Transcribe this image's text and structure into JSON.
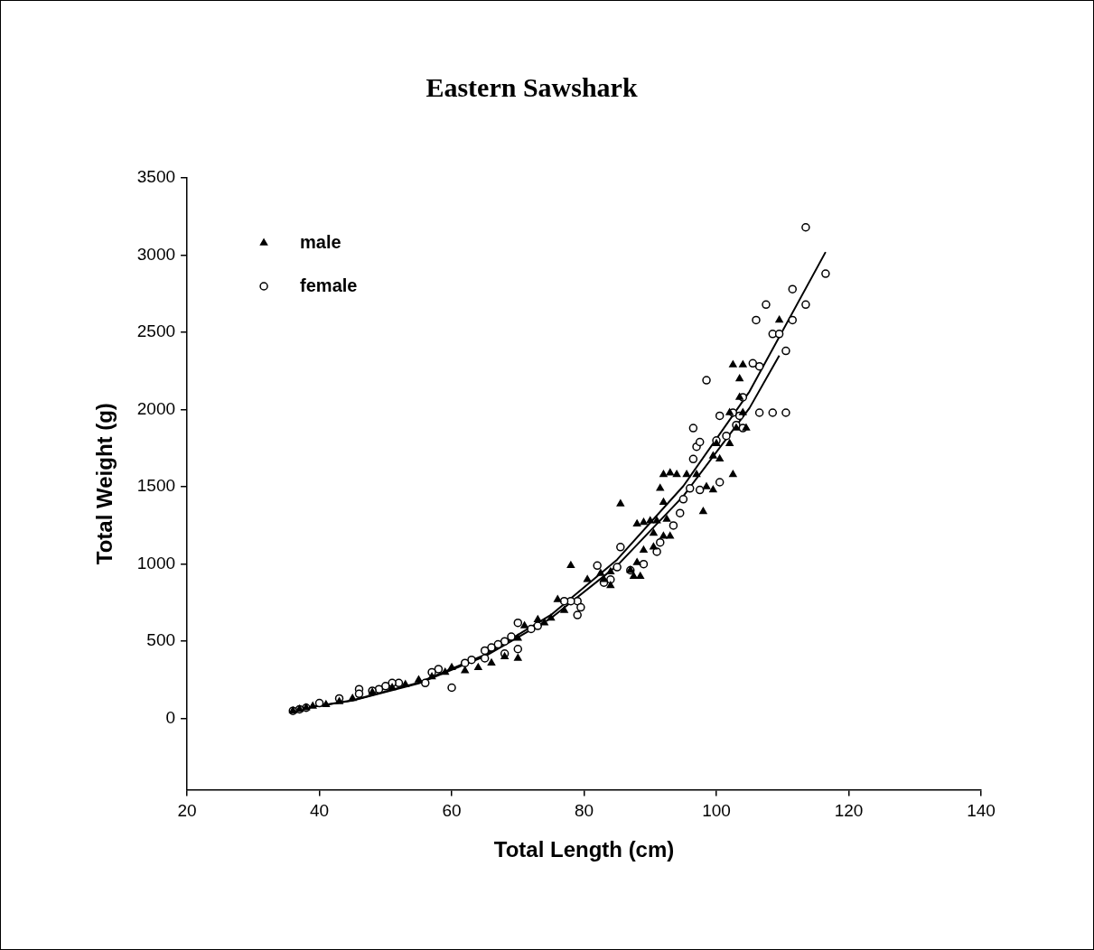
{
  "chart_data": {
    "type": "scatter",
    "title": "Eastern Sawshark",
    "xlabel": "Total Length (cm)",
    "ylabel": "Total Weight (g)",
    "xlim": [
      20,
      140
    ],
    "xticks": [
      20,
      40,
      60,
      80,
      100,
      120,
      140
    ],
    "ylim": [
      -460,
      3500
    ],
    "yticks": [
      0,
      500,
      1000,
      1500,
      2000,
      2500,
      3000,
      3500
    ],
    "grid": false,
    "legend": "top left",
    "series": [
      {
        "name": "male",
        "marker": "triangle",
        "color": "#000000",
        "x": [
          109.5,
          104,
          102.5,
          103.5,
          103.5,
          104,
          102,
          103,
          104.5,
          102,
          102.5,
          100,
          99.5,
          100.5,
          98.5,
          99.5,
          98,
          97,
          95.5,
          94,
          93,
          92,
          91.5,
          92,
          92.5,
          91,
          90,
          89,
          88,
          90.5,
          90.5,
          92,
          93,
          89,
          88,
          87,
          88.5,
          87.5,
          85.5,
          84,
          83,
          82.5,
          84,
          80.5,
          78,
          76,
          75,
          77,
          74,
          73,
          71,
          70,
          70,
          68,
          66,
          64,
          62,
          60,
          59,
          57,
          55,
          53,
          51,
          48,
          45,
          43,
          41,
          39,
          38,
          37,
          36
        ],
        "values": [
          2580,
          2290,
          2290,
          2200,
          2080,
          1980,
          1980,
          1880,
          1880,
          1780,
          1580,
          1780,
          1700,
          1680,
          1500,
          1480,
          1340,
          1580,
          1580,
          1580,
          1590,
          1580,
          1490,
          1400,
          1290,
          1280,
          1280,
          1270,
          1260,
          1200,
          1110,
          1180,
          1180,
          1090,
          1010,
          960,
          920,
          920,
          1390,
          950,
          900,
          940,
          860,
          900,
          990,
          770,
          650,
          700,
          620,
          640,
          600,
          520,
          390,
          400,
          360,
          330,
          310,
          330,
          300,
          270,
          250,
          220,
          200,
          170,
          130,
          110,
          90,
          80,
          70,
          60,
          50
        ]
      },
      {
        "name": "female",
        "marker": "circle",
        "color": "#000000",
        "x": [
          113.5,
          116.5,
          111.5,
          113.5,
          107.5,
          111.5,
          106,
          108.5,
          109.5,
          110.5,
          106.5,
          105.5,
          104,
          98.5,
          96.5,
          97,
          97.5,
          96.5,
          100.5,
          100,
          100.5,
          101.5,
          102.5,
          103.5,
          106.5,
          108.5,
          110.5,
          103,
          104,
          95,
          96,
          97.5,
          94.5,
          93.5,
          91.5,
          91,
          89,
          87,
          85.5,
          85,
          84,
          83,
          82,
          79,
          79,
          79.5,
          78,
          77,
          73,
          72,
          70,
          69,
          68,
          67,
          66,
          65,
          70,
          68,
          65,
          63,
          62,
          60,
          58,
          57,
          56,
          52,
          51,
          50,
          49,
          48,
          46,
          46,
          43,
          40,
          38,
          37,
          36
        ],
        "values": [
          3180,
          2880,
          2780,
          2680,
          2680,
          2580,
          2580,
          2490,
          2490,
          2380,
          2280,
          2300,
          2080,
          2190,
          1880,
          1760,
          1790,
          1680,
          1960,
          1800,
          1530,
          1830,
          1980,
          1960,
          1980,
          1980,
          1980,
          1900,
          1880,
          1420,
          1490,
          1480,
          1330,
          1250,
          1140,
          1080,
          1000,
          960,
          1110,
          980,
          900,
          880,
          990,
          760,
          670,
          720,
          760,
          760,
          600,
          580,
          620,
          530,
          500,
          480,
          460,
          440,
          450,
          420,
          390,
          380,
          360,
          200,
          320,
          300,
          230,
          230,
          230,
          210,
          190,
          180,
          190,
          160,
          130,
          100,
          70,
          60,
          50
        ]
      },
      {
        "type": "line",
        "marker": "none",
        "line_style": "solid",
        "color": "#000000",
        "x": [
          36,
          45,
          55,
          65,
          75,
          85,
          95,
          105,
          109.5
        ],
        "values": [
          55,
          116,
          228,
          403,
          650,
          990,
          1440,
          2010,
          2350
        ]
      },
      {
        "type": "line",
        "marker": "none",
        "line_style": "solid",
        "color": "#000000",
        "x": [
          36,
          45,
          55,
          65,
          75,
          85,
          95,
          105,
          116.5
        ],
        "values": [
          55,
          118,
          233,
          413,
          671,
          1029,
          1505,
          2117,
          3020
        ]
      }
    ]
  }
}
